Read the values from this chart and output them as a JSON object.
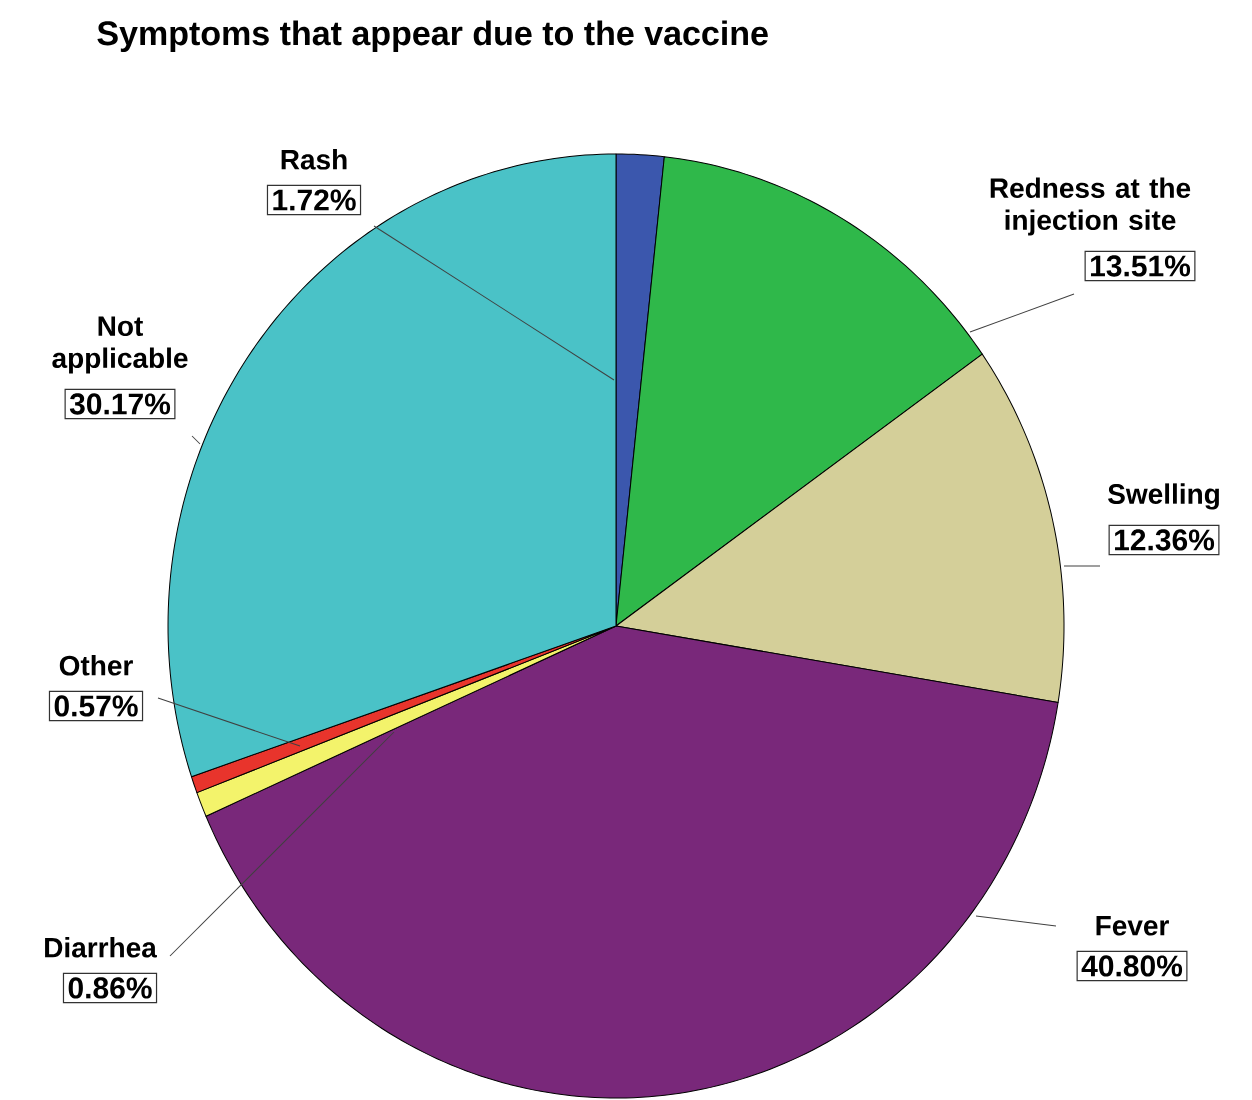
{
  "chart_data": {
    "type": "pie",
    "title": "Symptoms that appear due to the vaccine",
    "categories": [
      "Rash",
      "Redness at the injection site",
      "Swelling",
      "Fever",
      "Diarrhea",
      "Other",
      "Not applicable"
    ],
    "values": [
      1.72,
      13.51,
      12.36,
      40.8,
      0.86,
      0.57,
      30.17
    ],
    "value_labels": [
      "1.72%",
      "13.51%",
      "12.36%",
      "40.80%",
      "0.86%",
      "0.57%",
      "30.17%"
    ],
    "colors": [
      "#3b57ad",
      "#2fb84a",
      "#d4cf99",
      "#79287a",
      "#f3f36b",
      "#e8342c",
      "#4ac2c7"
    ]
  }
}
